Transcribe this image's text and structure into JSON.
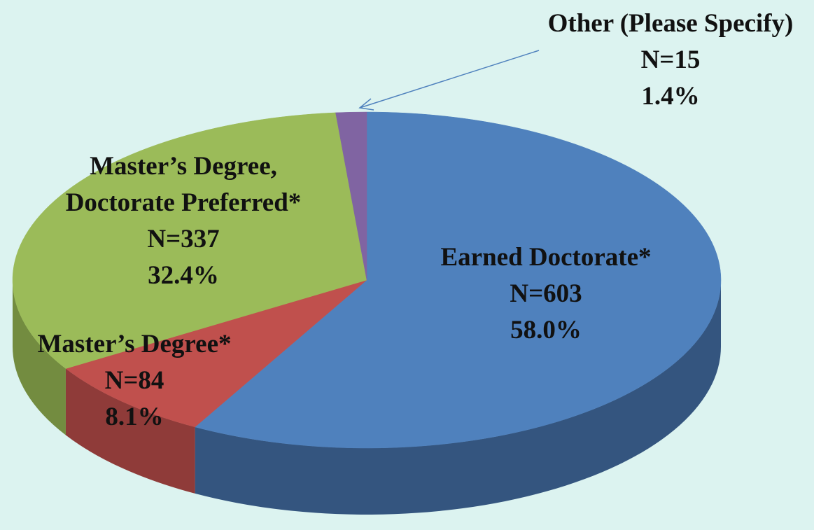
{
  "chart_data": {
    "type": "pie",
    "categories": [
      "Earned Doctorate*",
      "Master’s Degree*",
      "Master’s Degree, Doctorate Preferred*",
      "Other (Please Specify)"
    ],
    "values": [
      58.0,
      8.1,
      32.4,
      1.4
    ],
    "value_labels": [
      "58.0%",
      "8.1%",
      "32.4%",
      "1.4%"
    ],
    "counts": [
      603,
      84,
      337,
      15
    ],
    "count_labels": [
      "N=603",
      "N=84",
      "N=337",
      "N=15"
    ],
    "colors": [
      "#4f81bd",
      "#c0504d",
      "#9bbb59",
      "#8064a2"
    ],
    "side_colors": [
      "#34557f",
      "#8f3b39",
      "#738c40",
      "#5c4878"
    ]
  }
}
